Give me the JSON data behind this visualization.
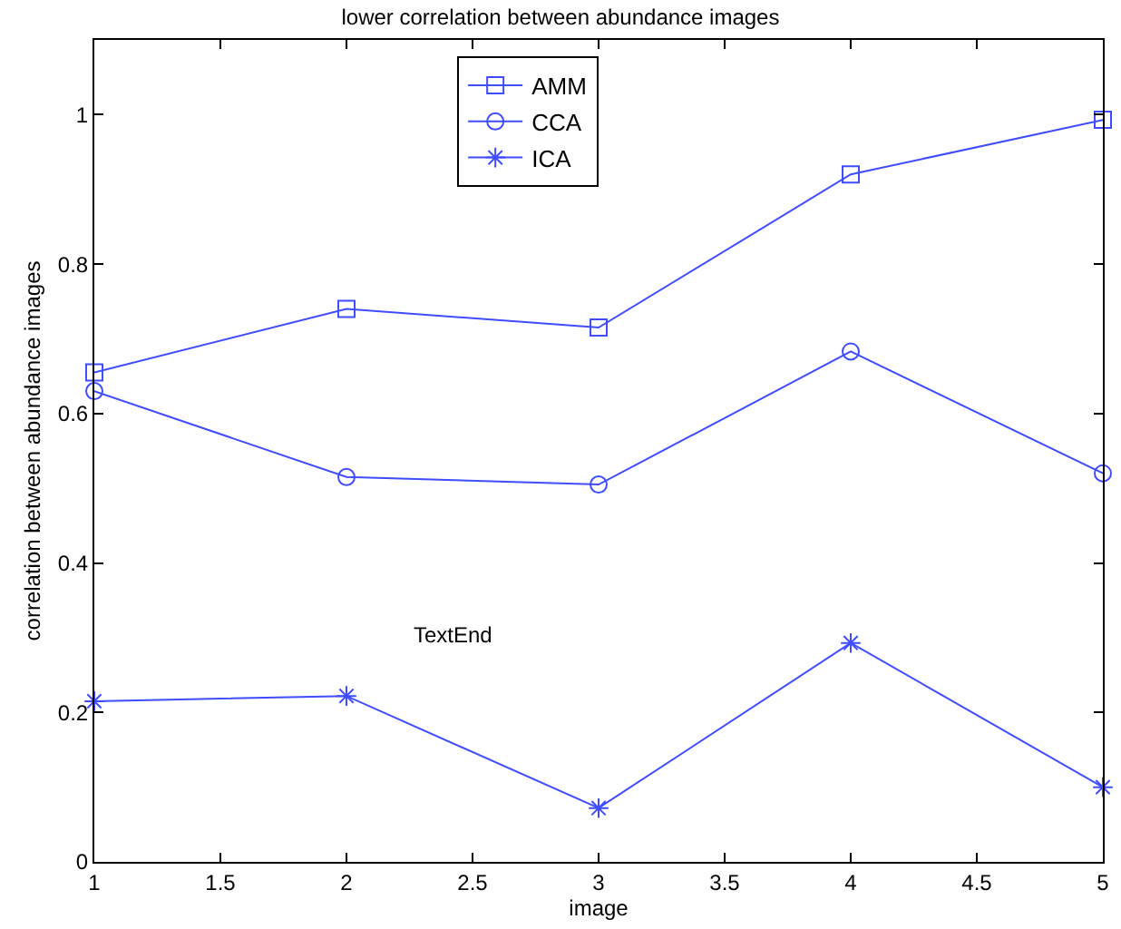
{
  "chart_data": {
    "type": "line",
    "title": "lower correlation between abundance images",
    "xlabel": "image",
    "ylabel": "correlation between abundance images",
    "x": [
      1,
      2,
      3,
      4,
      5
    ],
    "series": [
      {
        "name": "AMM",
        "color": "#3f4cff",
        "marker": "square",
        "values": [
          0.655,
          0.74,
          0.715,
          0.92,
          0.993
        ]
      },
      {
        "name": "CCA",
        "color": "#3f4cff",
        "marker": "circle",
        "values": [
          0.63,
          0.515,
          0.505,
          0.683,
          0.52
        ]
      },
      {
        "name": "ICA",
        "color": "#3f4cff",
        "marker": "cross",
        "values": [
          0.215,
          0.222,
          0.072,
          0.293,
          0.1
        ]
      }
    ],
    "xlim": [
      1,
      5
    ],
    "xticks": [
      1,
      1.5,
      2,
      2.5,
      3,
      3.5,
      4,
      4.5,
      5
    ],
    "ylim": [
      0,
      1.1
    ],
    "yticks": [
      0,
      0.2,
      0.4,
      0.6,
      0.8,
      1
    ],
    "grid": false,
    "legend": "top",
    "line_style": "solid",
    "annotations": [
      "TextEnd"
    ]
  }
}
